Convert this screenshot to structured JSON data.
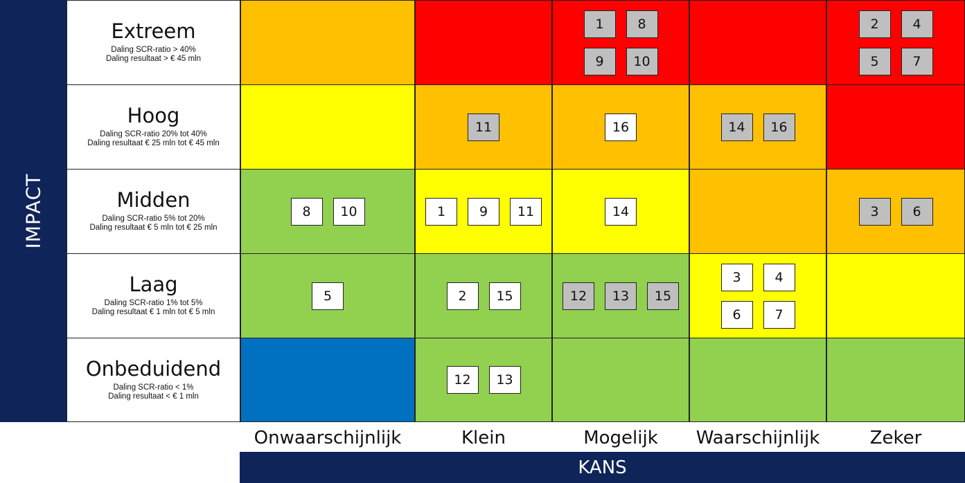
{
  "axes": {
    "impact": "IMPACT",
    "kans": "KANS"
  },
  "colors": {
    "navy": "#0f2458",
    "red": "#ff0000",
    "orange": "#ffc000",
    "yellow": "#ffff00",
    "green": "#92d050",
    "blue": "#0070c0",
    "white_badge": "#ffffff",
    "grey_badge": "#bfbfbf"
  },
  "columns": [
    "Onwaarschijnlijk",
    "Klein",
    "Mogelijk",
    "Waarschijnlijk",
    "Zeker"
  ],
  "rows": [
    {
      "title": "Extreem",
      "line1": "Daling SCR-ratio > 40%",
      "line2": "Daling resultaat > € 45 mln"
    },
    {
      "title": "Hoog",
      "line1": "Daling SCR-ratio 20% tot 40%",
      "line2": "Daling resultaat € 25 mln tot € 45 mln"
    },
    {
      "title": "Midden",
      "line1": "Daling SCR-ratio 5% tot 20%",
      "line2": "Daling resultaat € 5 mln tot € 25 mln"
    },
    {
      "title": "Laag",
      "line1": "Daling SCR-ratio 1% tot 5%",
      "line2": "Daling resultaat € 1 mln tot € 5 mln"
    },
    {
      "title": "Onbeduidend",
      "line1": "Daling SCR-ratio < 1%",
      "line2": "Daling resultaat < € 1 mln"
    }
  ],
  "cells": [
    [
      "orange",
      "red",
      "red",
      "red",
      "red"
    ],
    [
      "yellow",
      "orange",
      "orange",
      "orange",
      "red"
    ],
    [
      "green",
      "yellow",
      "yellow",
      "orange",
      "orange"
    ],
    [
      "green",
      "green",
      "green",
      "yellow",
      "yellow"
    ],
    [
      "blue",
      "green",
      "green",
      "green",
      "green"
    ]
  ],
  "badges": [
    {
      "row": 0,
      "col": 2,
      "style": "grey",
      "items": [
        [
          "1",
          "8"
        ],
        [
          "9",
          "10"
        ]
      ]
    },
    {
      "row": 0,
      "col": 4,
      "style": "grey",
      "items": [
        [
          "2",
          "4"
        ],
        [
          "5",
          "7"
        ]
      ]
    },
    {
      "row": 1,
      "col": 1,
      "style": "grey",
      "items": [
        [
          "11"
        ]
      ]
    },
    {
      "row": 1,
      "col": 2,
      "style": "white",
      "items": [
        [
          "16"
        ]
      ]
    },
    {
      "row": 1,
      "col": 3,
      "style": "grey",
      "items": [
        [
          "14",
          "16"
        ]
      ]
    },
    {
      "row": 2,
      "col": 0,
      "style": "white",
      "items": [
        [
          "8",
          "10"
        ]
      ]
    },
    {
      "row": 2,
      "col": 1,
      "style": "white",
      "items": [
        [
          "1",
          "9",
          "11"
        ]
      ]
    },
    {
      "row": 2,
      "col": 2,
      "style": "white",
      "items": [
        [
          "14"
        ]
      ]
    },
    {
      "row": 2,
      "col": 4,
      "style": "grey",
      "items": [
        [
          "3",
          "6"
        ]
      ]
    },
    {
      "row": 3,
      "col": 0,
      "style": "white",
      "items": [
        [
          "5"
        ]
      ]
    },
    {
      "row": 3,
      "col": 1,
      "style": "white",
      "items": [
        [
          "2",
          "15"
        ]
      ]
    },
    {
      "row": 3,
      "col": 2,
      "style": "grey",
      "items": [
        [
          "12",
          "13",
          "15"
        ]
      ]
    },
    {
      "row": 3,
      "col": 3,
      "style": "white",
      "items": [
        [
          "3",
          "4"
        ],
        [
          "6",
          "7"
        ]
      ]
    },
    {
      "row": 4,
      "col": 1,
      "style": "white",
      "items": [
        [
          "12",
          "13"
        ]
      ]
    }
  ]
}
